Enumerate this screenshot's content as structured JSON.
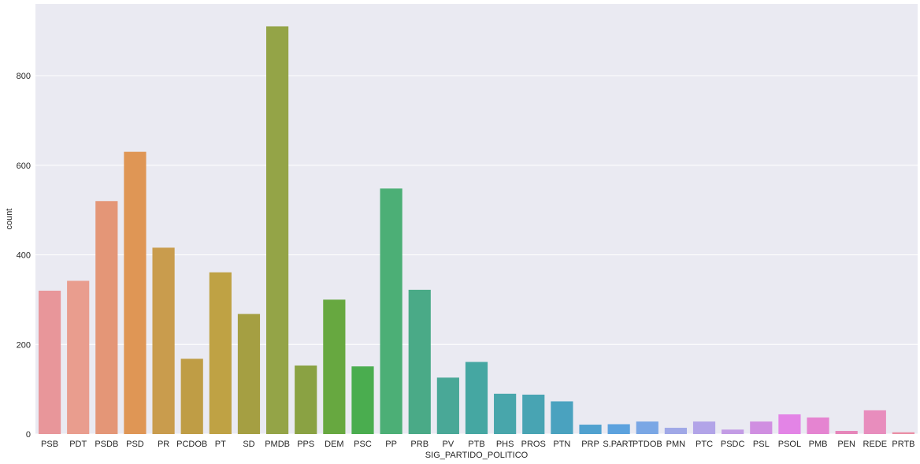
{
  "chart_data": {
    "type": "bar",
    "xlabel": "SIG_PARTIDO_POLITICO",
    "ylabel": "count",
    "ylim": [
      0,
      960
    ],
    "yticks": [
      0,
      200,
      400,
      600,
      800
    ],
    "grid": true,
    "categories": [
      "PSB",
      "PDT",
      "PSDB",
      "PSD",
      "PR",
      "PCDOB",
      "PT",
      "SD",
      "PMDB",
      "PPS",
      "DEM",
      "PSC",
      "PP",
      "PRB",
      "PV",
      "PTB",
      "PHS",
      "PROS",
      "PTN",
      "PRP",
      "S.PART.",
      "PTDOB",
      "PMN",
      "PTC",
      "PSDC",
      "PSL",
      "PSOL",
      "PMB",
      "PEN",
      "REDE",
      "PRTB"
    ],
    "values": [
      320,
      342,
      520,
      630,
      416,
      168,
      361,
      268,
      910,
      153,
      300,
      151,
      548,
      322,
      126,
      161,
      90,
      88,
      73,
      21,
      22,
      28,
      14,
      28,
      10,
      28,
      44,
      37,
      7,
      53,
      4
    ],
    "colors": [
      "#e8969a",
      "#e99d8e",
      "#e49677",
      "#df9655",
      "#c99c4d",
      "#bf9d45",
      "#bfa244",
      "#a59f42",
      "#94a447",
      "#8aa243",
      "#67a840",
      "#4aad4f",
      "#4caf76",
      "#4aaa87",
      "#49a897",
      "#45a7a2",
      "#48a6ab",
      "#48a4b3",
      "#4aa2bf",
      "#50a1cf",
      "#5ca2de",
      "#7aa7e5",
      "#a0a8e7",
      "#b2a4e8",
      "#c39ce5",
      "#d08fe1",
      "#e384e6",
      "#e584d1",
      "#e686ba",
      "#e88dbd",
      "#ea8fa6"
    ]
  }
}
